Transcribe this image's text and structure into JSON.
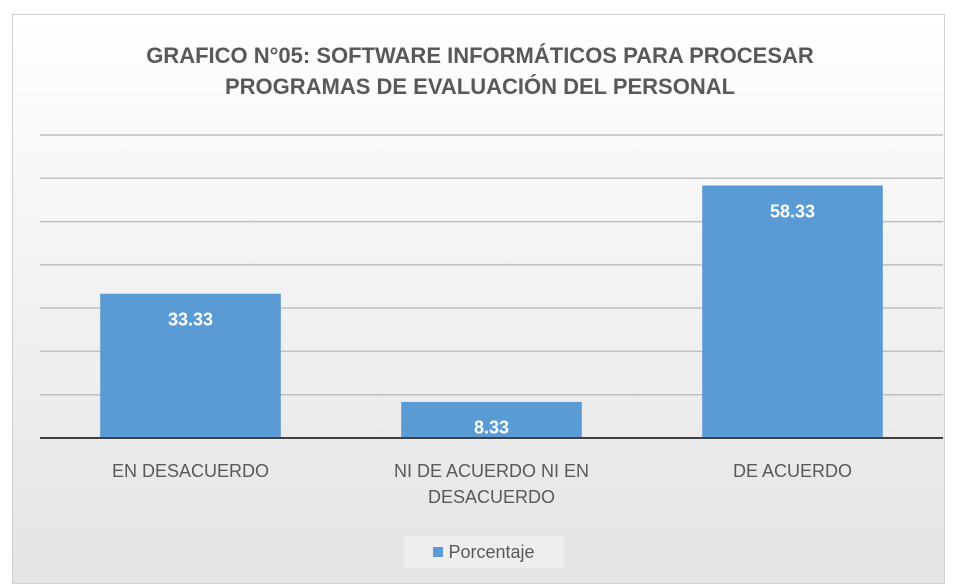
{
  "chart_data": {
    "type": "bar",
    "title": "GRAFICO N°05: SOFTWARE INFORMÁTICOS PARA PROCESAR PROGRAMAS DE EVALUACIÓN DEL PERSONAL",
    "categories": [
      "EN DESACUERDO",
      "NI DE ACUERDO NI EN DESACUERDO",
      "DE ACUERDO"
    ],
    "series": [
      {
        "name": "Porcentaje",
        "color": "#5b9bd5",
        "values": [
          33.33,
          8.33,
          58.33
        ]
      }
    ],
    "ylim": [
      0,
      70
    ],
    "yticks": [
      0,
      10,
      20,
      30,
      40,
      50,
      60,
      70
    ],
    "grid": true,
    "legend": "bottom"
  }
}
